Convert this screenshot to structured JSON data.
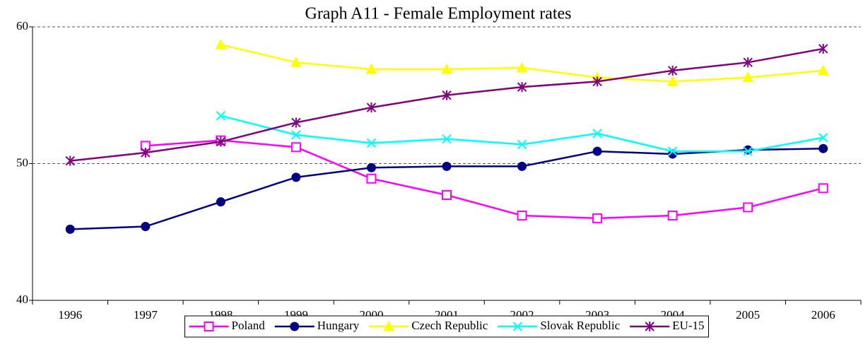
{
  "chart_data": {
    "type": "line",
    "title": "Graph A11 - Female Employment rates",
    "categories": [
      "1996",
      "1997",
      "1998",
      "1999",
      "2000",
      "2001",
      "2002",
      "2003",
      "2004",
      "2005",
      "2006"
    ],
    "series": [
      {
        "name": "Poland",
        "color": "#ff00ff",
        "marker": "square",
        "values": [
          null,
          51.3,
          51.7,
          51.2,
          48.9,
          47.7,
          46.2,
          46.0,
          46.2,
          46.8,
          48.2
        ]
      },
      {
        "name": "Hungary",
        "color": "#000080",
        "marker": "circle",
        "values": [
          45.2,
          45.4,
          47.2,
          49.0,
          49.7,
          49.8,
          49.8,
          50.9,
          50.7,
          51.0,
          51.1
        ]
      },
      {
        "name": "Czech Republic",
        "color": "#ffff00",
        "marker": "triangle",
        "values": [
          null,
          null,
          58.7,
          57.4,
          56.9,
          56.9,
          57.0,
          56.3,
          56.0,
          56.3,
          56.8
        ]
      },
      {
        "name": "Slovak Republic",
        "color": "#00ffff",
        "marker": "cross",
        "values": [
          null,
          null,
          53.5,
          52.1,
          51.5,
          51.8,
          51.4,
          52.2,
          50.9,
          50.9,
          51.9
        ]
      },
      {
        "name": "EU-15",
        "color": "#800080",
        "marker": "asterisk",
        "values": [
          50.2,
          50.8,
          51.6,
          53.0,
          54.1,
          55.0,
          55.6,
          56.0,
          56.8,
          57.4,
          58.4
        ]
      }
    ],
    "ylim": [
      40,
      60
    ],
    "yticks": [
      40,
      50,
      60
    ],
    "grid": true,
    "legend": "bottom"
  }
}
